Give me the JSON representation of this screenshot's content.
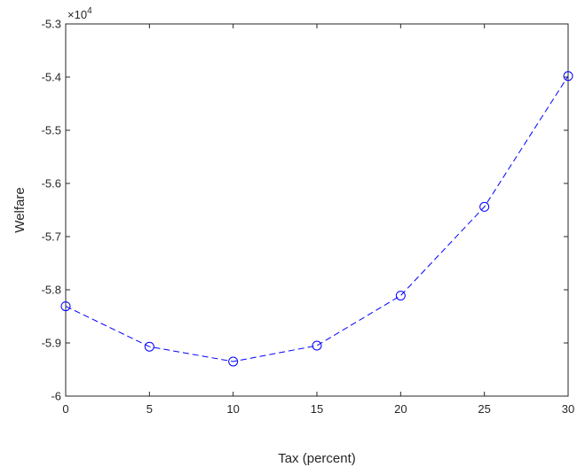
{
  "chart_data": {
    "type": "line",
    "xlabel": "Tax (percent)",
    "ylabel": "Welfare",
    "y_exponent_label": "×10",
    "y_exponent_power": "4",
    "xlim": [
      0,
      30
    ],
    "ylim": [
      -6.0,
      -5.3
    ],
    "x_ticks": [
      0,
      5,
      10,
      15,
      20,
      25,
      30
    ],
    "x_tick_labels": [
      "0",
      "5",
      "10",
      "15",
      "20",
      "25",
      "30"
    ],
    "y_ticks": [
      -6.0,
      -5.9,
      -5.8,
      -5.7,
      -5.6,
      -5.5,
      -5.4,
      -5.3
    ],
    "y_tick_labels": [
      "-6",
      "-5.9",
      "-5.8",
      "-5.7",
      "-5.6",
      "-5.5",
      "-5.4",
      "-5.3"
    ],
    "grid": false,
    "series": [
      {
        "x": [
          0,
          5,
          10,
          15,
          20,
          25,
          30
        ],
        "y": [
          -5.831,
          -5.907,
          -5.935,
          -5.905,
          -5.811,
          -5.644,
          -5.398
        ],
        "color": "#0000ff",
        "line_style": "dashed",
        "marker": "circle-open"
      }
    ]
  }
}
